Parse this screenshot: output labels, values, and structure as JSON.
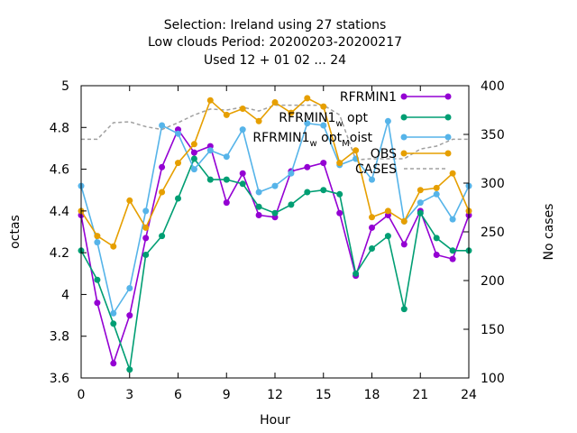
{
  "chart_data": {
    "type": "line",
    "title_lines": [
      "Selection: Ireland using    27 stations",
      "Low clouds   Period: 20200203-20200217",
      "Used  12 + 01 02 ... 24"
    ],
    "xlabel": "Hour",
    "ylabel": "octas",
    "y2label": "No cases",
    "xlim": [
      0,
      24
    ],
    "ylim": [
      3.6,
      5.0
    ],
    "y2lim": [
      100,
      400
    ],
    "xticks": [
      0,
      3,
      6,
      9,
      12,
      15,
      18,
      21,
      24
    ],
    "yticks": [
      3.6,
      3.8,
      4.0,
      4.2,
      4.4,
      4.6,
      4.8,
      5.0
    ],
    "ytick_labels": [
      "3.6",
      "3.8",
      "4",
      "4.2",
      "4.4",
      "4.6",
      "4.8",
      "5"
    ],
    "y2ticks": [
      100,
      150,
      200,
      250,
      300,
      350,
      400
    ],
    "legend_position": "top-right",
    "x": [
      0,
      1,
      2,
      3,
      4,
      5,
      6,
      7,
      8,
      9,
      10,
      11,
      12,
      13,
      14,
      15,
      16,
      17,
      18,
      19,
      20,
      21,
      22,
      23,
      24
    ],
    "series": [
      {
        "name": "RFRMIN1",
        "name_parts": [
          "RFRMIN1"
        ],
        "color": "#9400d3",
        "axis": "y",
        "values": [
          4.38,
          3.96,
          3.67,
          3.9,
          4.27,
          4.61,
          4.79,
          4.68,
          4.71,
          4.44,
          4.58,
          4.38,
          4.37,
          4.59,
          4.61,
          4.63,
          4.39,
          4.09,
          4.32,
          4.38,
          4.24,
          4.4,
          4.19,
          4.17,
          4.38
        ]
      },
      {
        "name": "RFRMIN1_w opt",
        "name_parts": [
          "RFRMIN1",
          "w",
          " opt"
        ],
        "color": "#009e73",
        "axis": "y",
        "values": [
          4.21,
          4.07,
          3.86,
          3.64,
          4.19,
          4.28,
          4.46,
          4.65,
          4.55,
          4.55,
          4.53,
          4.42,
          4.39,
          4.43,
          4.49,
          4.5,
          4.48,
          4.1,
          4.22,
          4.28,
          3.93,
          4.39,
          4.27,
          4.21,
          4.21
        ]
      },
      {
        "name": "RFRMIN1_w opt_M oist",
        "name_parts": [
          "RFRMIN1",
          "w",
          " opt",
          "M",
          "oist"
        ],
        "color": "#56b4e9",
        "axis": "y",
        "values": [
          4.52,
          4.25,
          3.91,
          4.03,
          4.4,
          4.81,
          4.77,
          4.6,
          4.69,
          4.66,
          4.79,
          4.49,
          4.52,
          4.58,
          4.82,
          4.81,
          4.62,
          4.65,
          4.55,
          4.83,
          4.35,
          4.44,
          4.48,
          4.36,
          4.52
        ]
      },
      {
        "name": "OBS",
        "name_parts": [
          "OBS"
        ],
        "color": "#e69f00",
        "axis": "y",
        "values": [
          4.4,
          4.28,
          4.23,
          4.45,
          4.32,
          4.49,
          4.63,
          4.72,
          4.93,
          4.86,
          4.89,
          4.83,
          4.92,
          4.87,
          4.94,
          4.9,
          4.63,
          4.69,
          4.37,
          4.4,
          4.35,
          4.5,
          4.51,
          4.58,
          4.4
        ]
      },
      {
        "name": "CASES",
        "name_parts": [
          "CASES"
        ],
        "color": "#a0a0a0",
        "axis": "y2",
        "dashed": true,
        "x": [
          0,
          1,
          2,
          3,
          4,
          5,
          6,
          7,
          8,
          9,
          10,
          11,
          12,
          13,
          14,
          15,
          16,
          17,
          18,
          19,
          20,
          21,
          22,
          23,
          24
        ],
        "values": [
          345,
          345,
          362,
          363,
          358,
          355,
          362,
          370,
          376,
          375,
          378,
          374,
          380,
          380,
          380,
          380,
          370,
          324,
          325,
          325,
          325,
          335,
          338,
          345,
          345
        ]
      }
    ]
  }
}
